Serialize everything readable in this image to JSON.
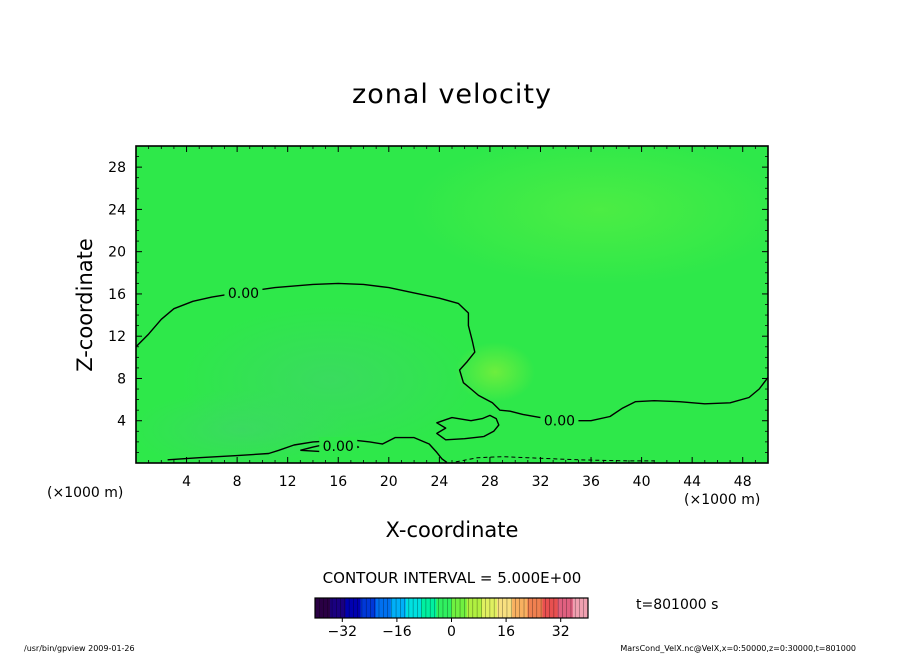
{
  "chart_data": {
    "type": "heatmap",
    "title": "zonal velocity",
    "xlabel": "X-coordinate",
    "ylabel": "Z-coordinate",
    "x_unit": "(×1000 m)",
    "y_unit": "(×1000 m)",
    "xlim": [
      0,
      50
    ],
    "ylim": [
      0,
      30
    ],
    "x_ticks": [
      4,
      8,
      12,
      16,
      20,
      24,
      28,
      32,
      36,
      40,
      44,
      48
    ],
    "y_ticks": [
      4,
      8,
      12,
      16,
      20,
      24,
      28
    ],
    "x_tick_labels": [
      "4",
      "8",
      "12",
      "16",
      "20",
      "24",
      "28",
      "32",
      "36",
      "40",
      "44",
      "48"
    ],
    "y_tick_labels": [
      "4",
      "8",
      "12",
      "16",
      "20",
      "24",
      "28"
    ],
    "contour_interval_text": "CONTOUR INTERVAL = 5.000E+00",
    "contour_labels": [
      {
        "text": "0.00",
        "x": 8.5,
        "y": 16.1
      },
      {
        "text": "0.00",
        "x": 33.5,
        "y": 4.0
      },
      {
        "text": "0.00",
        "x": 16.0,
        "y": 1.6
      }
    ],
    "zero_contours": [
      [
        [
          0,
          11
        ],
        [
          1,
          12.2
        ],
        [
          2,
          13.6
        ],
        [
          3,
          14.6
        ],
        [
          4.5,
          15.3
        ],
        [
          6,
          15.7
        ],
        [
          8,
          16.1
        ],
        [
          11,
          16.6
        ],
        [
          14,
          16.9
        ],
        [
          16,
          17.0
        ],
        [
          18,
          16.9
        ],
        [
          20,
          16.6
        ],
        [
          22,
          16.1
        ],
        [
          24,
          15.6
        ],
        [
          25.5,
          15.1
        ],
        [
          26.3,
          14.2
        ],
        [
          26.3,
          13.0
        ],
        [
          26.6,
          11.6
        ],
        [
          26.8,
          10.5
        ],
        [
          26.2,
          9.6
        ],
        [
          25.6,
          8.8
        ],
        [
          25.9,
          7.6
        ],
        [
          26.5,
          7.0
        ],
        [
          27.1,
          6.4
        ],
        [
          28.2,
          5.7
        ],
        [
          28.8,
          5.0
        ],
        [
          29.6,
          4.9
        ],
        [
          30.6,
          4.6
        ],
        [
          32,
          4.3
        ],
        [
          34,
          4.0
        ],
        [
          36,
          4.0
        ],
        [
          37.5,
          4.4
        ],
        [
          38.5,
          5.2
        ],
        [
          39.5,
          5.8
        ],
        [
          41,
          5.9
        ],
        [
          43,
          5.8
        ],
        [
          45,
          5.6
        ],
        [
          47,
          5.7
        ],
        [
          48.5,
          6.2
        ],
        [
          49.3,
          7.0
        ],
        [
          50,
          8.1
        ]
      ],
      [
        [
          2.5,
          0.3
        ],
        [
          5,
          0.5
        ],
        [
          8,
          0.7
        ],
        [
          10.5,
          0.9
        ],
        [
          11.3,
          1.2
        ],
        [
          12.5,
          1.7
        ],
        [
          14,
          2.0
        ],
        [
          15.5,
          2.1
        ],
        [
          17,
          2.2
        ],
        [
          18.5,
          2.0
        ],
        [
          19.5,
          1.8
        ],
        [
          20.5,
          2.4
        ],
        [
          22.0,
          2.4
        ],
        [
          23.2,
          1.8
        ],
        [
          23.8,
          1.0
        ],
        [
          24.2,
          0.4
        ],
        [
          24.6,
          0.05
        ]
      ],
      [
        [
          13.0,
          1.2
        ],
        [
          14.0,
          1.5
        ],
        [
          15.5,
          1.9
        ],
        [
          16.8,
          2.0
        ],
        [
          17.6,
          1.5
        ],
        [
          17.0,
          1.3
        ],
        [
          16.0,
          1.4
        ],
        [
          14.5,
          1.1
        ],
        [
          13.0,
          1.2
        ]
      ],
      [
        [
          27.5,
          2.5
        ],
        [
          26.0,
          2.3
        ],
        [
          24.5,
          2.2
        ],
        [
          23.8,
          2.8
        ],
        [
          24.5,
          3.3
        ],
        [
          23.8,
          3.8
        ],
        [
          24.5,
          4.1
        ],
        [
          25.0,
          4.3
        ],
        [
          26.5,
          4.0
        ],
        [
          27.4,
          4.2
        ],
        [
          28.0,
          4.5
        ],
        [
          28.5,
          4.2
        ],
        [
          28.7,
          3.6
        ],
        [
          28.3,
          3.0
        ],
        [
          27.5,
          2.5
        ]
      ]
    ],
    "negative_contours": [
      [
        [
          25.3,
          0.1
        ],
        [
          27,
          0.5
        ],
        [
          29,
          0.6
        ],
        [
          31,
          0.5
        ],
        [
          33,
          0.4
        ],
        [
          35,
          0.3
        ],
        [
          37,
          0.25
        ],
        [
          39,
          0.2
        ],
        [
          41,
          0.2
        ]
      ]
    ],
    "colorbar": {
      "min": -40,
      "max": 40,
      "tick_values": [
        -32,
        -16,
        0,
        16,
        32
      ],
      "tick_labels": [
        "−32",
        "−16",
        "0",
        "16",
        "32"
      ],
      "colors": [
        "#2a0044",
        "#1a0080",
        "#0000b0",
        "#0038d8",
        "#0070f0",
        "#00b0f8",
        "#00e0e0",
        "#00f0a0",
        "#30f060",
        "#70f040",
        "#b0f040",
        "#e0f060",
        "#f8e080",
        "#f8b060",
        "#f08050",
        "#e85050",
        "#e06080",
        "#f0a0b0"
      ]
    },
    "field_background": "#2ee84a",
    "time_label": "t=801000 s"
  },
  "footer": {
    "left": "/usr/bin/gpview  2009-01-26",
    "right": "MarsCond_VelX.nc@VelX,x=0:50000,z=0:30000,t=801000"
  }
}
